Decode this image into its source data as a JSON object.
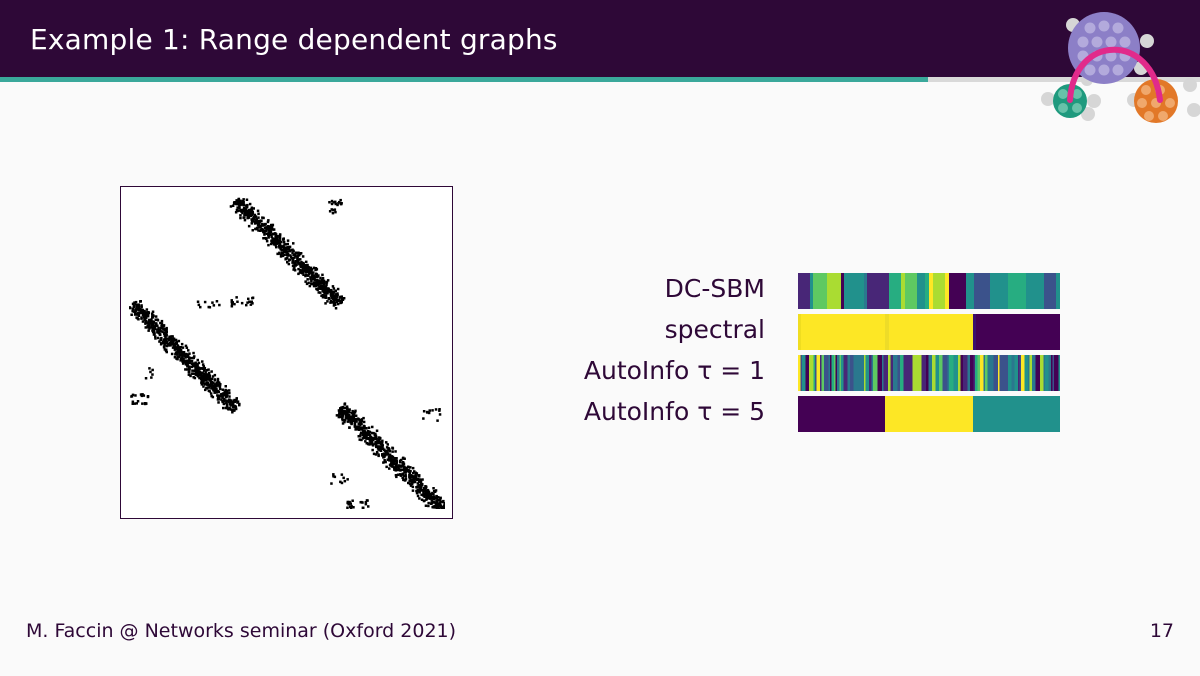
{
  "slide": {
    "title": "Example 1: Range dependent graphs",
    "footer": "M. Faccin @ Networks seminar (Oxford 2021)",
    "page_number": "17"
  },
  "colors": {
    "header_bg": "#2e0837",
    "accent_teal": "#3aa89b",
    "viridis_dark": "#440154",
    "viridis_yellow": "#fde725",
    "viridis_teal": "#21918c"
  },
  "logo": {
    "icon": "network-communities-logo-icon"
  },
  "figure": {
    "icon": "adjacency-matrix-plot"
  },
  "partitions": [
    {
      "label": "DC-SBM"
    },
    {
      "label": "spectral"
    },
    {
      "label": "AutoInfo τ = 1"
    },
    {
      "label": "AutoInfo τ = 5"
    }
  ]
}
